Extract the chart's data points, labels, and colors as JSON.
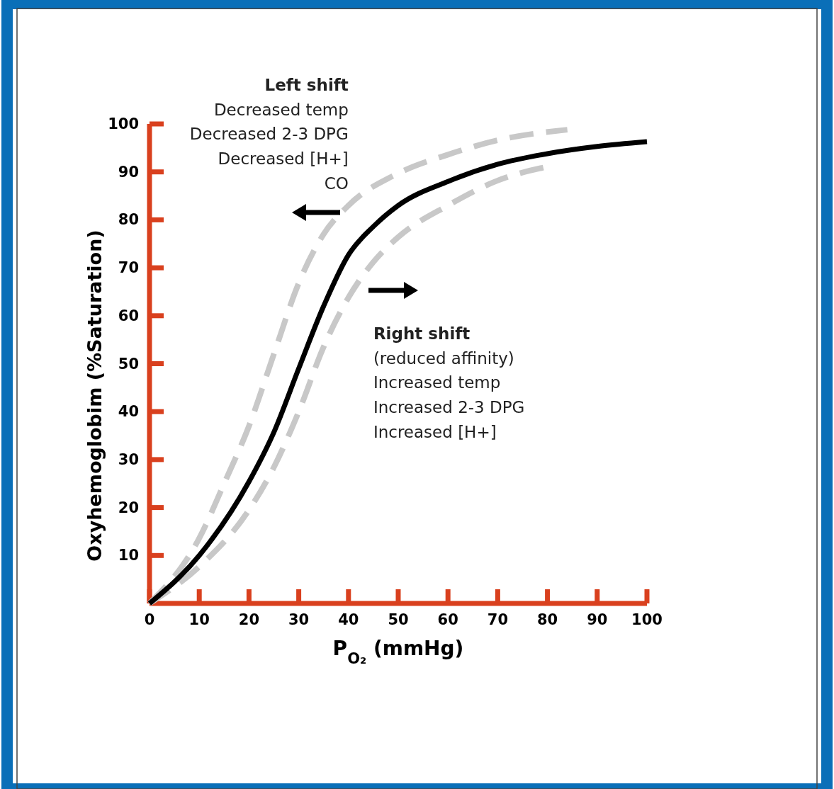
{
  "chart_data": {
    "type": "line",
    "xlabel": "P$_{O₂}$ (mmHg)",
    "ylabel": "Oxyhemoglobim  (%Saturation)",
    "xlim": [
      0,
      100
    ],
    "ylim": [
      0,
      100
    ],
    "xticks": [
      0,
      10,
      20,
      30,
      40,
      50,
      60,
      70,
      80,
      90,
      100
    ],
    "yticks": [
      10,
      20,
      30,
      40,
      50,
      60,
      70,
      80,
      90,
      100
    ],
    "grid": false,
    "annotations": [
      "Left shift\nDecreased temp\nDecreased 2-3 DPG\nDecreased [H+]\nCO",
      "Right shift\n(reduced affinity)\nIncreased temp\nIncreased 2-3 DPG\nIncreased [H+]"
    ],
    "series": [
      {
        "color": "#c8c8c8",
        "line_style": "dashed",
        "x": [
          0,
          10,
          15,
          20,
          25,
          30,
          35,
          40,
          50,
          60,
          70,
          84
        ],
        "values": [
          0,
          13.6,
          25,
          37,
          52,
          66.8,
          77,
          83,
          89.7,
          93.6,
          96.6,
          98.8
        ]
      },
      {
        "color": "#c8c8c8",
        "line_style": "dashed",
        "x": [
          0,
          10,
          20,
          25,
          30,
          35,
          40,
          45,
          50,
          60,
          70,
          80
        ],
        "values": [
          0,
          7.7,
          19.5,
          28.4,
          40,
          53.5,
          63.8,
          71.2,
          76.4,
          83,
          88.2,
          91.1
        ]
      },
      {
        "color": "#000000",
        "line_style": "solid",
        "x": [
          0,
          10,
          20,
          25,
          30,
          35,
          40,
          45,
          50,
          60,
          70,
          80,
          90,
          100
        ],
        "values": [
          0,
          10,
          25.4,
          35.7,
          49,
          62,
          72.7,
          78.6,
          83,
          88,
          91.6,
          93.8,
          95.3,
          96.3
        ]
      }
    ]
  }
}
